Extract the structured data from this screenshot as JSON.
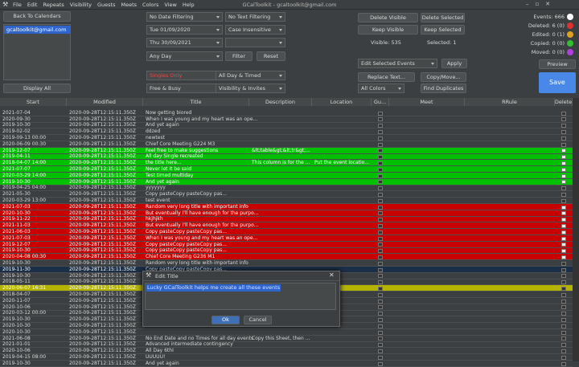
{
  "window_title": "GCalToolkit - gcaltoolkit@gmail.com",
  "menu": [
    "File",
    "Edit",
    "Repeats",
    "Visibility",
    "Guests",
    "Meets",
    "Colors",
    "View",
    "Help"
  ],
  "left": {
    "back_button": "Back To Calendars",
    "calendar": "gcaltoolkit@gmail.com",
    "display_all": "Display All"
  },
  "filters": {
    "date_filter": "No Date Filtering",
    "start_date": "Tue 01/09/2020",
    "end_date": "Thu 30/09/2021",
    "day": "Any Day",
    "recurrence": "Singles Only",
    "busy": "Free & Busy",
    "text_filter": "No Text Filtering",
    "case": "Case Insensitive",
    "filter_button": "Filter",
    "reset_button": "Reset",
    "timing": "All Day & Timed",
    "visibility": "Visibility & Invites"
  },
  "actions": {
    "delete_visible": "Delete Visible",
    "delete_selected": "Delete Selected",
    "keep_visible": "Keep Visible",
    "keep_selected": "Keep Selected",
    "visible": "Visible: 535",
    "selected": "Selected: 1",
    "edit_selected": "Edit Selected Events",
    "apply": "Apply",
    "replace_text": "Replace Text...",
    "copy_move": "Copy/Move...",
    "colors": "All Colors",
    "find_duplicates": "Find Duplicates",
    "preview": "Preview",
    "save": "Save"
  },
  "stats": [
    {
      "label": "Events: 666",
      "color": "#ffffff"
    },
    {
      "label": "Deleted: 6 (0)",
      "color": "#e03030"
    },
    {
      "label": "Edited: 0 (1)",
      "color": "#e0a020"
    },
    {
      "label": "Copied: 0 (0)",
      "color": "#30c030"
    },
    {
      "label": "Moved: 0 (0)",
      "color": "#b040e0"
    }
  ],
  "table": {
    "columns": [
      "Start",
      "Modified",
      "Title",
      "Description",
      "Location",
      "Gu...",
      "Meet",
      "RRule",
      "Delete"
    ],
    "rows": [
      {
        "start": "2021-07-04",
        "modified": "2020-09-28T12:15:11.350Z",
        "title": "Now getting biored"
      },
      {
        "start": "2020-09-30",
        "modified": "2020-09-28T12:15:11.350Z",
        "title": "When I was young and my heart was an ope..."
      },
      {
        "start": "2019-10-30",
        "modified": "2020-09-28T12:15:11.350Z",
        "title": "And yet again"
      },
      {
        "start": "2019-02-02",
        "modified": "2020-09-28T12:15:11.350Z",
        "title": "ddzed"
      },
      {
        "start": "2019-09-13 00:00",
        "modified": "2020-09-28T12:15:11.350Z",
        "title": "newtest"
      },
      {
        "start": "2020-06-09 00:30",
        "modified": "2020-09-28T12:15:11.350Z",
        "title": "Chief Core Meeting G224 M3"
      },
      {
        "start": "2019-12-07",
        "modified": "2020-09-28T12:15:11.350Z",
        "title": "Feel free to make suggestions",
        "description": "&lt;table&gt;&lt;tr&gt;...",
        "color": "#00c000",
        "delete": true
      },
      {
        "start": "2019-04-11",
        "modified": "2020-09-28T12:15:11.350Z",
        "title": "All day Single recreated",
        "color": "#00c000",
        "delete": true
      },
      {
        "start": "2018-04-07 14:00",
        "modified": "2020-09-28T12:15:11.350Z",
        "title": "the title here...",
        "description": "This column is for the ...",
        "location": "Put the event locatio...",
        "color": "#00c000",
        "delete": true
      },
      {
        "start": "2021-07-07",
        "modified": "2020-09-28T12:15:11.350Z",
        "title": "Never let it be said",
        "color": "#00c000",
        "delete": true
      },
      {
        "start": "2020-03-29 14:00",
        "modified": "2020-09-28T12:15:11.350Z",
        "title": "Test timed multiday",
        "color": "#00c000",
        "delete": true
      },
      {
        "start": "2019-10-30",
        "modified": "2020-09-28T12:15:11.350Z",
        "title": "And yet again",
        "color": "#00c000",
        "delete": true
      },
      {
        "start": "2019-04-25 04:00",
        "modified": "2020-09-28T12:15:11.350Z",
        "title": "yyyyyyy"
      },
      {
        "start": "2021-05-30",
        "modified": "2020-09-28T12:15:11.350Z",
        "title": "Copy pasteCopy pasteCopy pas..."
      },
      {
        "start": "2020-03-29 13:00",
        "modified": "2020-09-28T12:15:11.350Z",
        "title": "test event"
      },
      {
        "start": "2021-07-03",
        "modified": "2020-09-28T12:15:11.350Z",
        "title": "Random very long title with important info",
        "color": "#c80000",
        "delete": true
      },
      {
        "start": "2020-10-30",
        "modified": "2020-09-28T12:15:11.350Z",
        "title": "But eventually I'll have enough for the purpo...",
        "color": "#c80000",
        "delete": true
      },
      {
        "start": "2019-11-22",
        "modified": "2020-09-28T12:15:11.350Z",
        "title": "hkjhjkh",
        "color": "#c80000",
        "delete": true
      },
      {
        "start": "2021-11-03",
        "modified": "2020-09-28T12:15:11.350Z",
        "title": "But eventually I'll have enough for the purpo...",
        "color": "#c80000",
        "delete": true
      },
      {
        "start": "2021-06-03",
        "modified": "2020-09-28T12:15:11.350Z",
        "title": "Copy pasteCopy pasteCopy pas...",
        "color": "#c80000",
        "delete": true
      },
      {
        "start": "2021-07-03",
        "modified": "2020-09-28T12:15:11.350Z",
        "title": "When I was young and my heart was an ope...",
        "color": "#c80000",
        "delete": true
      },
      {
        "start": "2019-12-07",
        "modified": "2020-09-28T12:15:11.350Z",
        "title": "Copy pasteCopy pasteCopy pas...",
        "color": "#c80000",
        "delete": true
      },
      {
        "start": "2019-10-30",
        "modified": "2020-09-28T12:15:11.350Z",
        "title": "Copy pasteCopy pasteCopy pas...",
        "color": "#c80000",
        "delete": true
      },
      {
        "start": "2020-04-08 00:30",
        "modified": "2020-09-28T12:15:11.350Z",
        "title": "Chief Core Meeting G236 M1",
        "color": "#c80000",
        "delete": true
      },
      {
        "start": "2019-10-30",
        "modified": "2020-09-28T12:15:11.350Z",
        "title": "Random very long title with important info"
      },
      {
        "start": "2019-11-30",
        "modified": "2020-09-28T12:15:11.350Z",
        "title": "Copy pasteCopy pasteCopy pas...",
        "color": "#1c2f48"
      },
      {
        "start": "2019-10-30",
        "modified": "2020-09-28T12:15:11.350Z"
      },
      {
        "start": "2018-05-11",
        "modified": "2020-09-28T12:15:11.350Z"
      },
      {
        "start": "2020-06-07 16:31",
        "modified": "2020-09-28T12:15:11.350Z",
        "color": "#b4b400"
      },
      {
        "start": "2018-04-07",
        "modified": "2020-09-28T12:15:11.350Z"
      },
      {
        "start": "2020-11-07",
        "modified": "2020-09-28T12:15:11.350Z"
      },
      {
        "start": "2020-10-06",
        "modified": "2020-09-28T12:15:11.350Z"
      },
      {
        "start": "2020-03-12 00:00",
        "modified": "2020-09-28T12:15:11.350Z"
      },
      {
        "start": "2019-10-30",
        "modified": "2020-09-28T12:15:11.350Z"
      },
      {
        "start": "2020-10-30",
        "modified": "2020-09-28T12:15:11.350Z"
      },
      {
        "start": "2020-10-30",
        "modified": "2020-09-28T12:15:11.350Z"
      },
      {
        "start": "2021-06-08",
        "modified": "2020-09-28T12:15:11.350Z",
        "title": "No End Date and no Times for all day events",
        "description": "Copy this Sheet, then ..."
      },
      {
        "start": "2021-01-01",
        "modified": "2020-09-28T12:15:11.350Z",
        "title": "Advanced intermediate contingency"
      },
      {
        "start": "2020-10-06",
        "modified": "2020-09-28T12:15:11.350Z",
        "title": "All Day 6thI"
      },
      {
        "start": "2019-04-15 08:00",
        "modified": "2020-09-28T12:15:11.350Z",
        "title": "UUUUU!"
      },
      {
        "start": "2019-10-30",
        "modified": "2020-09-28T12:15:11.350Z",
        "title": "And yet again"
      }
    ]
  },
  "dialog": {
    "title": "Edit Title",
    "text": "Lucky GCalToolkit helps me create all these events",
    "ok": "Ok",
    "cancel": "Cancel"
  }
}
